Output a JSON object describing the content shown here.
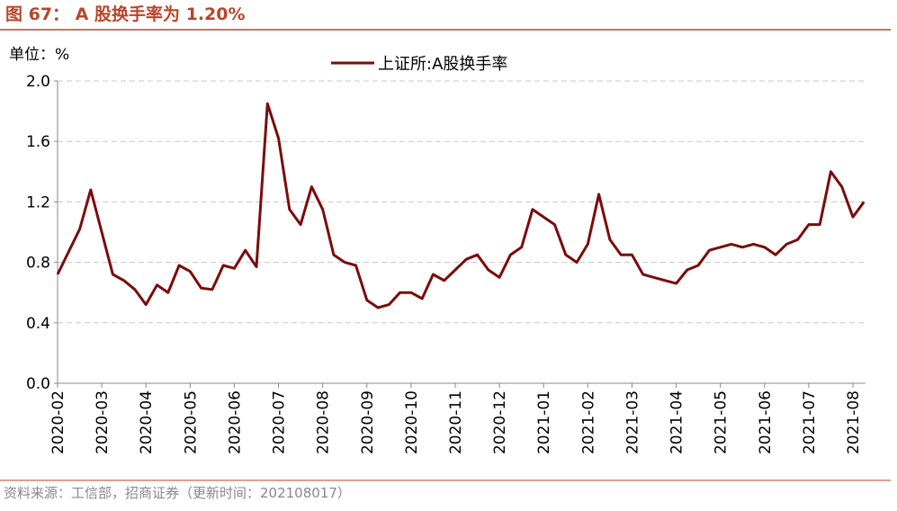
{
  "chart_data": {
    "type": "line",
    "title": "图 67：  A 股换手率为 1.20%",
    "unit_label": "单位：%",
    "source": "资料来源：工信部，招商证券（更新时间：202108017）",
    "categories": [
      "2020-02",
      null,
      null,
      null,
      "2020-03",
      null,
      null,
      null,
      "2020-04",
      null,
      null,
      null,
      "2020-05",
      null,
      null,
      null,
      "2020-06",
      null,
      null,
      null,
      "2020-07",
      null,
      null,
      null,
      "2020-08",
      null,
      null,
      null,
      "2020-09",
      null,
      null,
      null,
      "2020-10",
      null,
      null,
      null,
      "2020-11",
      null,
      null,
      null,
      "2020-12",
      null,
      null,
      null,
      "2021-01",
      null,
      null,
      null,
      "2021-02",
      null,
      null,
      null,
      "2021-03",
      null,
      null,
      null,
      "2021-04",
      null,
      null,
      null,
      "2021-05",
      null,
      null,
      null,
      "2021-06",
      null,
      null,
      null,
      "2021-07",
      null,
      null,
      null,
      "2021-08",
      null
    ],
    "series": [
      {
        "name": "上证所:A股换手率",
        "color": "#7b0c0c",
        "values": [
          0.72,
          0.87,
          1.02,
          1.28,
          1.0,
          0.72,
          0.68,
          0.62,
          0.52,
          0.65,
          0.6,
          0.78,
          0.74,
          0.63,
          0.62,
          0.78,
          0.76,
          0.88,
          0.77,
          1.85,
          1.62,
          1.15,
          1.05,
          1.3,
          1.15,
          0.85,
          0.8,
          0.78,
          0.55,
          0.5,
          0.52,
          0.6,
          0.6,
          0.56,
          0.72,
          0.68,
          0.75,
          0.82,
          0.85,
          0.75,
          0.7,
          0.85,
          0.9,
          1.15,
          1.1,
          1.05,
          0.85,
          0.8,
          0.92,
          1.25,
          0.95,
          0.85,
          0.85,
          0.72,
          0.7,
          0.68,
          0.66,
          0.75,
          0.78,
          0.88,
          0.9,
          0.92,
          0.9,
          0.92,
          0.9,
          0.85,
          0.92,
          0.95,
          1.05,
          1.05,
          1.4,
          1.3,
          1.1,
          1.2
        ]
      }
    ],
    "ylim": [
      0,
      2
    ],
    "yticks": [
      {
        "value": 0,
        "label": "0.0"
      },
      {
        "value": 0.4,
        "label": "0.4"
      },
      {
        "value": 0.8,
        "label": "0.8"
      },
      {
        "value": 1.2,
        "label": "1.2"
      },
      {
        "value": 1.6,
        "label": "1.6"
      },
      {
        "value": 2,
        "label": "2.0"
      }
    ],
    "grid": true,
    "legend": "top"
  }
}
